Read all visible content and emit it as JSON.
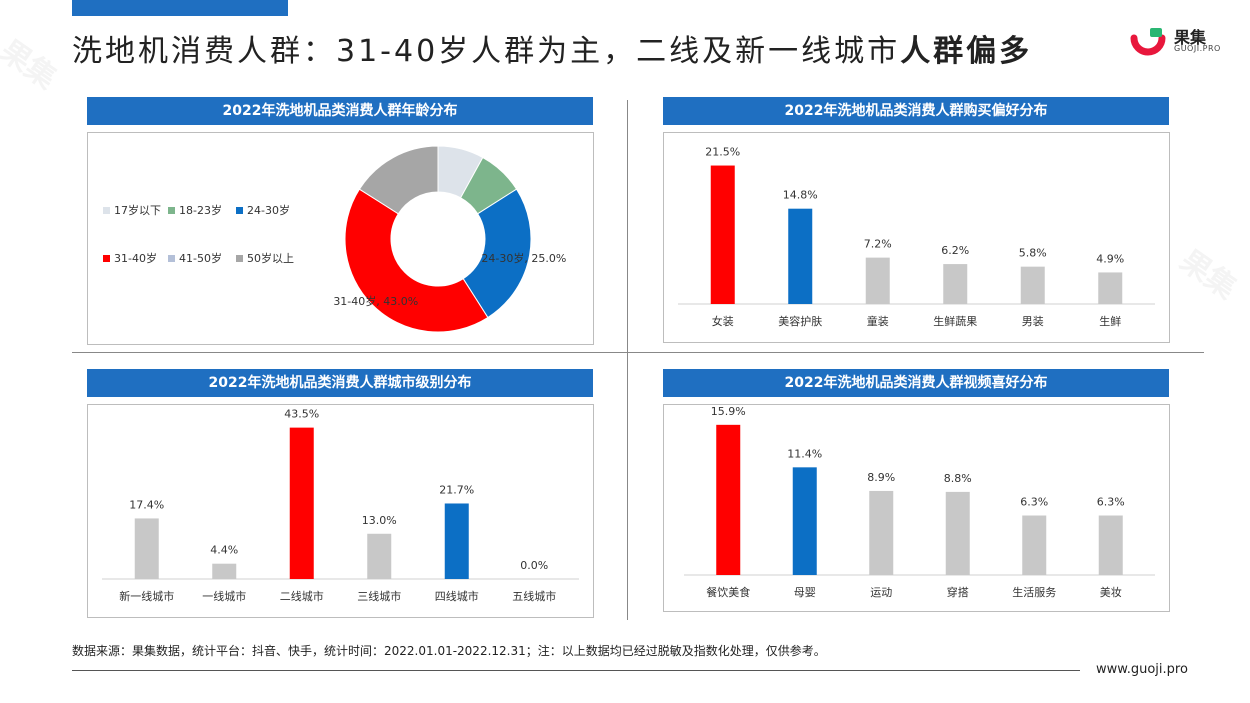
{
  "title": {
    "main": "洗地机消费人群：31-40岁人群为主，二线及新一线城市",
    "bold": "人群偏多"
  },
  "logo": {
    "name": "果集",
    "sub": "GUOJI.PRO"
  },
  "panels": {
    "age": {
      "header": "2022年洗地机品类消费人群年龄分布"
    },
    "preference": {
      "header": "2022年洗地机品类消费人群购买偏好分布"
    },
    "city": {
      "header": "2022年洗地机品类消费人群城市级别分布"
    },
    "video": {
      "header": "2022年洗地机品类消费人群视频喜好分布"
    }
  },
  "footer": {
    "note": "数据来源：果集数据，统计平台：抖音、快手，统计时间：2022.01.01-2022.12.31；注：以上数据均已经过脱敏及指数化处理，仅供参考。",
    "url": "www.guoji.pro"
  },
  "colors": {
    "red": "#ff0000",
    "blue": "#0c6fc5",
    "gray": "#c8c8c8",
    "header": "#1f6fc1"
  },
  "chart_data": [
    {
      "type": "pie",
      "title": "2022年洗地机品类消费人群年龄分布",
      "legend_position": "left",
      "slices": [
        {
          "label": "17岁以下",
          "value": 8.0,
          "color": "#dde3ea"
        },
        {
          "label": "18-23岁",
          "value": 8.0,
          "color": "#7db58c"
        },
        {
          "label": "24-30岁",
          "value": 25.0,
          "color": "#0c6fc5"
        },
        {
          "label": "31-40岁",
          "value": 43.0,
          "color": "#ff0000"
        },
        {
          "label": "41-50岁",
          "value": 0.0,
          "color": "#b4c0d8"
        },
        {
          "label": "50岁以上",
          "value": 16.0,
          "color": "#a6a6a6"
        }
      ],
      "data_labels": [
        {
          "text": "24-30岁, 25.0%",
          "slice": 2
        },
        {
          "text": "31-40岁, 43.0%",
          "slice": 3
        }
      ]
    },
    {
      "type": "bar",
      "title": "2022年洗地机品类消费人群购买偏好分布",
      "categories": [
        "女装",
        "美容护肤",
        "童装",
        "生鲜蔬果",
        "男装",
        "生鲜"
      ],
      "values": [
        21.5,
        14.8,
        7.2,
        6.2,
        5.8,
        4.9
      ],
      "value_labels": [
        "21.5%",
        "14.8%",
        "7.2%",
        "6.2%",
        "5.8%",
        "4.9%"
      ],
      "colors": [
        "#ff0000",
        "#0c6fc5",
        "#c8c8c8",
        "#c8c8c8",
        "#c8c8c8",
        "#c8c8c8"
      ],
      "ylim": [
        0,
        25
      ]
    },
    {
      "type": "bar",
      "title": "2022年洗地机品类消费人群城市级别分布",
      "categories": [
        "新一线城市",
        "一线城市",
        "二线城市",
        "三线城市",
        "四线城市",
        "五线城市"
      ],
      "values": [
        17.4,
        4.4,
        43.5,
        13.0,
        21.7,
        0.0
      ],
      "value_labels": [
        "17.4%",
        "4.4%",
        "43.5%",
        "13.0%",
        "21.7%",
        "0.0%"
      ],
      "colors": [
        "#c8c8c8",
        "#c8c8c8",
        "#ff0000",
        "#c8c8c8",
        "#0c6fc5",
        "#c8c8c8"
      ],
      "ylim": [
        0,
        50
      ]
    },
    {
      "type": "bar",
      "title": "2022年洗地机品类消费人群视频喜好分布",
      "categories": [
        "餐饮美食",
        "母婴",
        "运动",
        "穿搭",
        "生活服务",
        "美妆"
      ],
      "values": [
        15.9,
        11.4,
        8.9,
        8.8,
        6.3,
        6.3
      ],
      "value_labels": [
        "15.9%",
        "11.4%",
        "8.9%",
        "8.8%",
        "6.3%",
        "6.3%"
      ],
      "colors": [
        "#ff0000",
        "#0c6fc5",
        "#c8c8c8",
        "#c8c8c8",
        "#c8c8c8",
        "#c8c8c8"
      ],
      "ylim": [
        0,
        18
      ]
    }
  ]
}
